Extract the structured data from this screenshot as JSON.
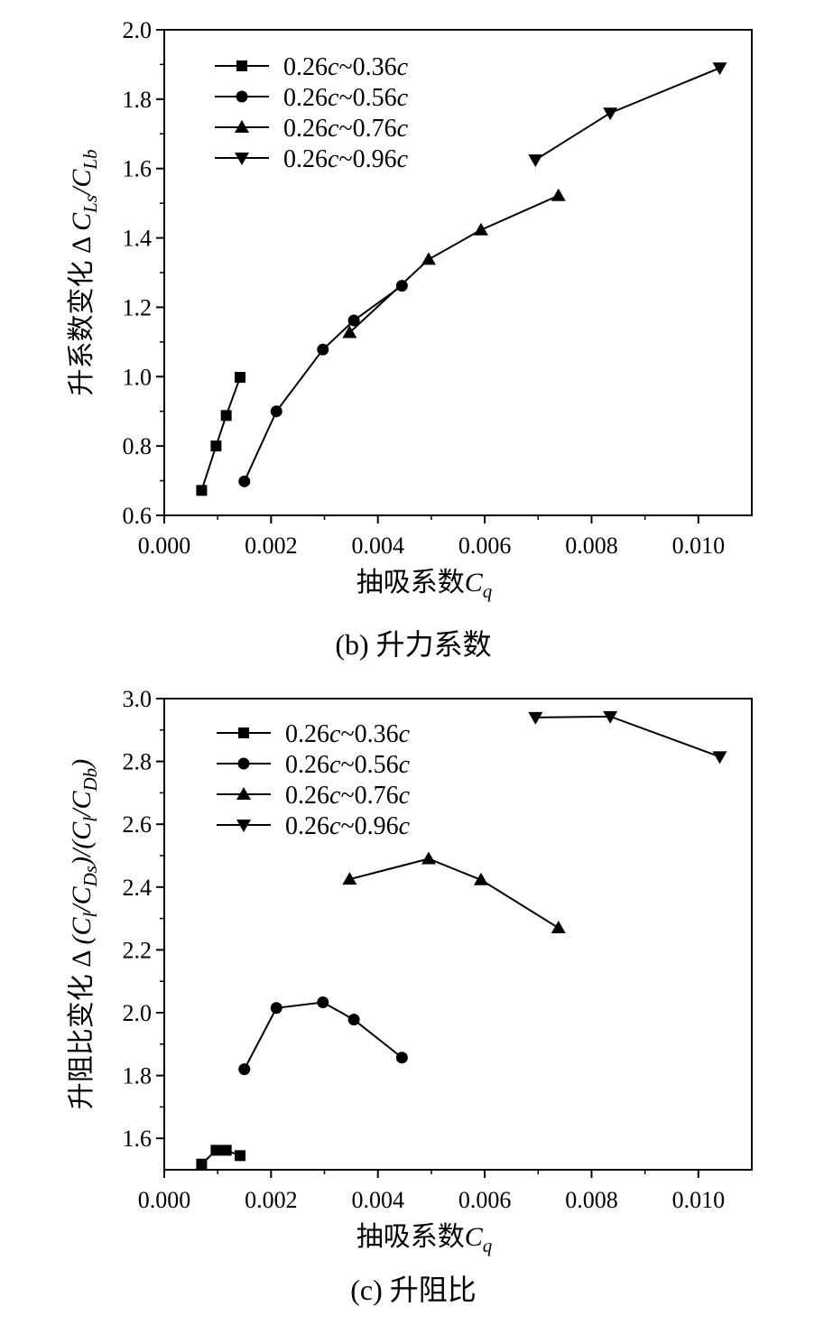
{
  "charts": [
    {
      "id": "b",
      "caption": "(b)  升力系数",
      "xlabel": {
        "main": "抽吸系数",
        "var": "C",
        "sub": "q"
      },
      "ylabel": {
        "main": "升系数变化 Δ ",
        "parts": [
          [
            "C",
            ""
          ],
          [
            "Ls",
            "sub"
          ],
          [
            "/C",
            ""
          ],
          [
            "Lb",
            "sub"
          ]
        ]
      }
    },
    {
      "id": "c",
      "caption": "(c)  升阻比",
      "xlabel": {
        "main": "抽吸系数",
        "var": "C",
        "sub": "q"
      },
      "ylabel": {
        "main": "升阻比变化 Δ ",
        "parts": [
          [
            "(C",
            ""
          ],
          [
            "l",
            "sub"
          ],
          [
            "/C",
            ""
          ],
          [
            "Ds",
            "sub"
          ],
          [
            ")/(C",
            ""
          ],
          [
            "l",
            "sub"
          ],
          [
            "/C",
            ""
          ],
          [
            "Db",
            "sub"
          ],
          [
            ")",
            ""
          ]
        ]
      }
    }
  ],
  "chart_data": [
    {
      "type": "line",
      "title": "(b)  升力系数",
      "xlabel": "抽吸系数Cq",
      "ylabel": "升系数变化 Δ CLs/CLb",
      "xlim": [
        0,
        0.011
      ],
      "ylim": [
        0.6,
        2.0
      ],
      "xticks": [
        "0.000",
        "0.002",
        "0.004",
        "0.006",
        "0.008",
        "0.010"
      ],
      "xtick_values": [
        0,
        0.002,
        0.004,
        0.006,
        0.008,
        0.01
      ],
      "yticks": [
        "0.6",
        "0.8",
        "1.0",
        "1.2",
        "1.4",
        "1.6",
        "1.8",
        "2.0"
      ],
      "ytick_values": [
        0.6,
        0.8,
        1.0,
        1.2,
        1.4,
        1.6,
        1.8,
        2.0
      ],
      "legend_position": "top-left",
      "series": [
        {
          "name": "0.26c~0.36c",
          "marker": "square",
          "x": [
            0.0007,
            0.00097,
            0.00116,
            0.00142
          ],
          "y": [
            0.672,
            0.8,
            0.888,
            0.998
          ]
        },
        {
          "name": "0.26c~0.56c",
          "marker": "circle",
          "x": [
            0.0015,
            0.0021,
            0.00297,
            0.00355,
            0.00445
          ],
          "y": [
            0.698,
            0.9,
            1.078,
            1.162,
            1.262
          ]
        },
        {
          "name": "0.26c~0.76c",
          "marker": "triangle-up",
          "x": [
            0.00347,
            0.00495,
            0.00593,
            0.00738
          ],
          "y": [
            1.127,
            1.338,
            1.423,
            1.522
          ]
        },
        {
          "name": "0.26c~0.96c",
          "marker": "triangle-down",
          "x": [
            0.00695,
            0.00835,
            0.0104
          ],
          "y": [
            1.625,
            1.76,
            1.89
          ]
        }
      ]
    },
    {
      "type": "line",
      "title": "(c)  升阻比",
      "xlabel": "抽吸系数Cq",
      "ylabel": "升阻比变化 Δ (Cl/CDs)/(Cl/CDb)",
      "xlim": [
        0,
        0.011
      ],
      "ylim": [
        1.5,
        3.0
      ],
      "xticks": [
        "0.000",
        "0.002",
        "0.004",
        "0.006",
        "0.008",
        "0.010"
      ],
      "xtick_values": [
        0,
        0.002,
        0.004,
        0.006,
        0.008,
        0.01
      ],
      "yticks": [
        "1.6",
        "1.8",
        "2.0",
        "2.2",
        "2.4",
        "2.6",
        "2.8",
        "3.0"
      ],
      "ytick_values": [
        1.6,
        1.8,
        2.0,
        2.2,
        2.4,
        2.6,
        2.8,
        3.0
      ],
      "legend_position": "top-left",
      "series": [
        {
          "name": "0.26c~0.36c",
          "marker": "square",
          "x": [
            0.0007,
            0.00097,
            0.00116,
            0.00142
          ],
          "y": [
            1.518,
            1.562,
            1.562,
            1.545
          ]
        },
        {
          "name": "0.26c~0.56c",
          "marker": "circle",
          "x": [
            0.0015,
            0.0021,
            0.00297,
            0.00355,
            0.00445
          ],
          "y": [
            1.82,
            2.015,
            2.033,
            1.978,
            1.857
          ]
        },
        {
          "name": "0.26c~0.76c",
          "marker": "triangle-up",
          "x": [
            0.00347,
            0.00495,
            0.00593,
            0.00738
          ],
          "y": [
            2.425,
            2.49,
            2.423,
            2.27
          ]
        },
        {
          "name": "0.26c~0.96c",
          "marker": "triangle-down",
          "x": [
            0.00695,
            0.00835,
            0.0104
          ],
          "y": [
            2.94,
            2.943,
            2.815
          ]
        }
      ]
    }
  ]
}
